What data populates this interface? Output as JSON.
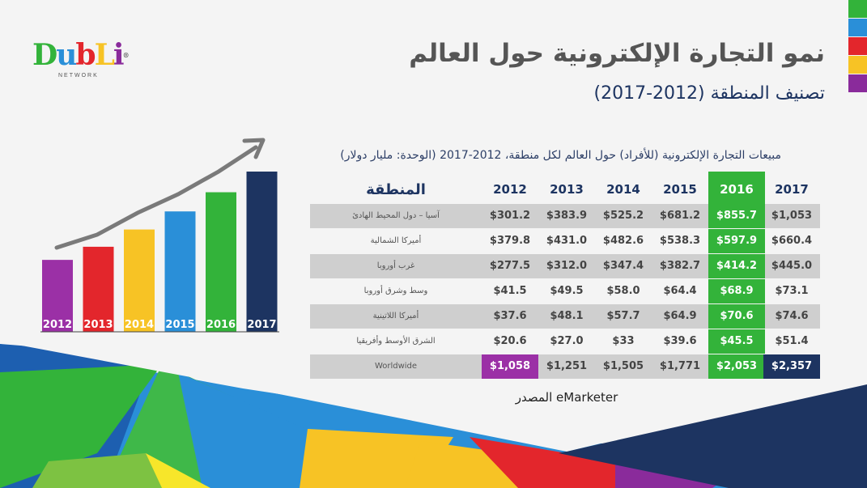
{
  "title": "نمو التجارة الإلكترونية حول العالم",
  "subtitle": "تصنيف المنطقة (2012-2017)",
  "logo": {
    "word": "DubLi",
    "network": "NETWORK"
  },
  "strip_colors": [
    "#33b33a",
    "#2a8fd8",
    "#e3262c",
    "#f7c325",
    "#8a2b9b"
  ],
  "table": {
    "caption": "مبيعات التجارة الإلكترونية (للأفراد) حول العالم لكل منطقة، 2012-2017 (الوحدة: مليار دولار)",
    "region_header": "المنطقة",
    "years": [
      "2012",
      "2013",
      "2014",
      "2015",
      "2016",
      "2017"
    ],
    "rows": [
      {
        "region": "آسيا – دول المحيط الهادئ",
        "values": [
          "$301.2",
          "$383.9",
          "$525.2",
          "$681.2",
          "$855.7",
          "$1,053"
        ]
      },
      {
        "region": "أميركا الشمالية",
        "values": [
          "$379.8",
          "$431.0",
          "$482.6",
          "$538.3",
          "$597.9",
          "$660.4"
        ]
      },
      {
        "region": "غرب أوروبا",
        "values": [
          "$277.5",
          "$312.0",
          "$347.4",
          "$382.7",
          "$414.2",
          "$445.0"
        ]
      },
      {
        "region": "وسط وشرق أوروبا",
        "values": [
          "$41.5",
          "$49.5",
          "$58.0",
          "$64.4",
          "$68.9",
          "$73.1"
        ]
      },
      {
        "region": "أميركا اللاتينية",
        "values": [
          "$37.6",
          "$48.1",
          "$57.7",
          "$64.9",
          "$70.6",
          "$74.6"
        ]
      },
      {
        "region": "الشرق الأوسط وأفريقيا",
        "values": [
          "$20.6",
          "$27.0",
          "$33",
          "$39.6",
          "$45.5",
          "$51.4"
        ]
      }
    ],
    "worldwide": {
      "region": "Worldwide",
      "values": [
        "$1,058",
        "$1,251",
        "$1,505",
        "$1,771",
        "$2,053",
        "$2,357"
      ]
    }
  },
  "source": "المصدر eMarketer",
  "chart_data": {
    "type": "bar",
    "categories": [
      "2012",
      "2013",
      "2014",
      "2015",
      "2016",
      "2017"
    ],
    "values": [
      1058,
      1251,
      1505,
      1771,
      2053,
      2357
    ],
    "colors": [
      "#9b30a6",
      "#e3262c",
      "#f7c325",
      "#2a8fd8",
      "#33b33a",
      "#1d3461"
    ],
    "trend_arrow": true,
    "axes": "none"
  }
}
